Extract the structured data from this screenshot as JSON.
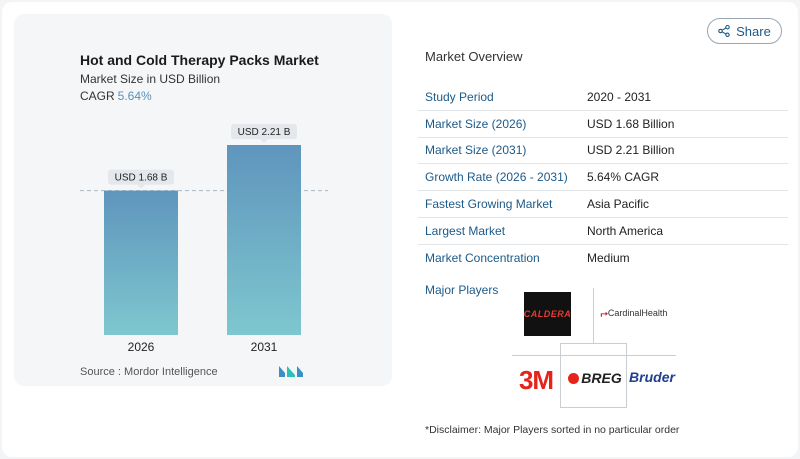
{
  "chart_data": {
    "type": "bar",
    "title": "Hot and Cold Therapy Packs Market",
    "subtitle": "Market Size in USD Billion",
    "cagr_label": "CAGR",
    "cagr_value": "5.64%",
    "categories": [
      "2026",
      "2031"
    ],
    "values": [
      1.68,
      2.21
    ],
    "data_labels": [
      "USD 1.68 B",
      "USD 2.21 B"
    ],
    "ylim": [
      0,
      2.21
    ],
    "grid": false,
    "colors": {
      "bar_top": "#5f95bd",
      "bar_bottom": "#7ec7cf",
      "label_bg": "#e4e8ec",
      "dashed_line": "#aab6c0"
    }
  },
  "source": {
    "label": "Source :",
    "name": "Mordor Intelligence"
  },
  "share": {
    "label": "Share",
    "icon": "share-icon"
  },
  "overview": {
    "title": "Market Overview",
    "rows": [
      {
        "label": "Study Period",
        "value": "2020 - 2031"
      },
      {
        "label": "Market Size (2026)",
        "value": "USD 1.68 Billion"
      },
      {
        "label": "Market Size (2031)",
        "value": "USD 2.21 Billion"
      },
      {
        "label": "Growth Rate (2026 - 2031)",
        "value": "5.64% CAGR"
      },
      {
        "label": "Fastest Growing Market",
        "value": "Asia Pacific"
      },
      {
        "label": "Largest Market",
        "value": "North America"
      },
      {
        "label": "Market Concentration",
        "value": "Medium"
      }
    ]
  },
  "players": {
    "label": "Major Players",
    "logos": [
      "CALDERA",
      "CardinalHealth",
      "3M",
      "BREG",
      "Bruder"
    ]
  },
  "disclaimer": "*Disclaimer: Major Players sorted in no particular order"
}
